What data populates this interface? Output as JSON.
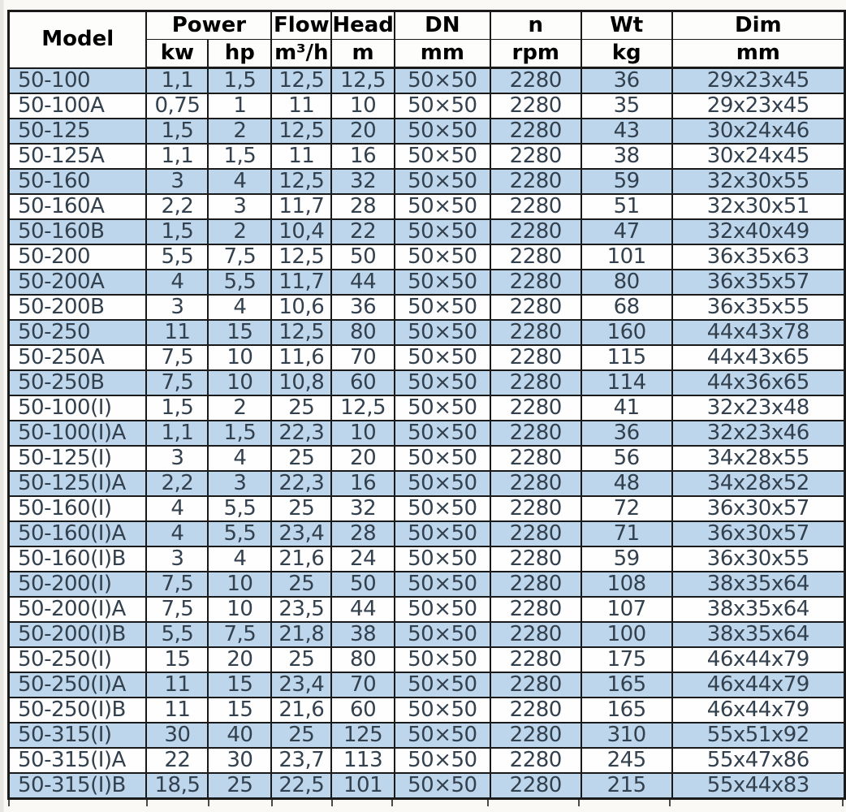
{
  "table": {
    "header": {
      "model_label": "Model",
      "power_label": "Power",
      "flow_label": "Flow",
      "head_label": "Head",
      "dn_label": "DN",
      "n_label": "n",
      "wt_label": "Wt",
      "dim_label": "Dim",
      "units": {
        "kw": "kw",
        "hp": "hp",
        "flow": "m³/h",
        "head": "m",
        "dn": "mm",
        "n": "rpm",
        "wt": "kg",
        "dim": "mm"
      }
    },
    "columns_order": [
      "model",
      "kw",
      "hp",
      "flow",
      "head",
      "dn",
      "n",
      "wt",
      "dim"
    ],
    "rows": [
      [
        "50-100",
        "1,1",
        "1,5",
        "12,5",
        "12,5",
        "50×50",
        "2280",
        "36",
        "29x23x45"
      ],
      [
        "50-100A",
        "0,75",
        "1",
        "11",
        "10",
        "50×50",
        "2280",
        "35",
        "29x23x45"
      ],
      [
        "50-125",
        "1,5",
        "2",
        "12,5",
        "20",
        "50×50",
        "2280",
        "43",
        "30x24x46"
      ],
      [
        "50-125A",
        "1,1",
        "1,5",
        "11",
        "16",
        "50×50",
        "2280",
        "38",
        "30x24x45"
      ],
      [
        "50-160",
        "3",
        "4",
        "12,5",
        "32",
        "50×50",
        "2280",
        "59",
        "32x30x55"
      ],
      [
        "50-160A",
        "2,2",
        "3",
        "11,7",
        "28",
        "50×50",
        "2280",
        "51",
        "32x30x51"
      ],
      [
        "50-160B",
        "1,5",
        "2",
        "10,4",
        "22",
        "50×50",
        "2280",
        "47",
        "32x40x49"
      ],
      [
        "50-200",
        "5,5",
        "7,5",
        "12,5",
        "50",
        "50×50",
        "2280",
        "101",
        "36x35x63"
      ],
      [
        "50-200A",
        "4",
        "5,5",
        "11,7",
        "44",
        "50×50",
        "2280",
        "80",
        "36x35x57"
      ],
      [
        "50-200B",
        "3",
        "4",
        "10,6",
        "36",
        "50×50",
        "2280",
        "68",
        "36x35x55"
      ],
      [
        "50-250",
        "11",
        "15",
        "12,5",
        "80",
        "50×50",
        "2280",
        "160",
        "44x43x78"
      ],
      [
        "50-250A",
        "7,5",
        "10",
        "11,6",
        "70",
        "50×50",
        "2280",
        "115",
        "44x43x65"
      ],
      [
        "50-250B",
        "7,5",
        "10",
        "10,8",
        "60",
        "50×50",
        "2280",
        "114",
        "44x36x65"
      ],
      [
        "50-100(I)",
        "1,5",
        "2",
        "25",
        "12,5",
        "50×50",
        "2280",
        "41",
        "32x23x48"
      ],
      [
        "50-100(I)A",
        "1,1",
        "1,5",
        "22,3",
        "10",
        "50×50",
        "2280",
        "36",
        "32x23x46"
      ],
      [
        "50-125(I)",
        "3",
        "4",
        "25",
        "20",
        "50×50",
        "2280",
        "56",
        "34x28x55"
      ],
      [
        "50-125(I)A",
        "2,2",
        "3",
        "22,3",
        "16",
        "50×50",
        "2280",
        "48",
        "34x28x52"
      ],
      [
        "50-160(I)",
        "4",
        "5,5",
        "25",
        "32",
        "50×50",
        "2280",
        "72",
        "36x30x57"
      ],
      [
        "50-160(I)A",
        "4",
        "5,5",
        "23,4",
        "28",
        "50×50",
        "2280",
        "71",
        "36x30x57"
      ],
      [
        "50-160(I)B",
        "3",
        "4",
        "21,6",
        "24",
        "50×50",
        "2280",
        "59",
        "36x30x55"
      ],
      [
        "50-200(I)",
        "7,5",
        "10",
        "25",
        "50",
        "50×50",
        "2280",
        "108",
        "38x35x64"
      ],
      [
        "50-200(I)A",
        "7,5",
        "10",
        "23,5",
        "44",
        "50×50",
        "2280",
        "107",
        "38x35x64"
      ],
      [
        "50-200(I)B",
        "5,5",
        "7,5",
        "21,8",
        "38",
        "50×50",
        "2280",
        "100",
        "38x35x64"
      ],
      [
        "50-250(I)",
        "15",
        "20",
        "25",
        "80",
        "50×50",
        "2280",
        "175",
        "46x44x79"
      ],
      [
        "50-250(I)A",
        "11",
        "15",
        "23,4",
        "70",
        "50×50",
        "2280",
        "165",
        "46x44x79"
      ],
      [
        "50-250(I)B",
        "11",
        "15",
        "21,6",
        "60",
        "50×50",
        "2280",
        "165",
        "46x44x79"
      ],
      [
        "50-315(I)",
        "30",
        "40",
        "25",
        "125",
        "50×50",
        "2280",
        "310",
        "55x51x92"
      ],
      [
        "50-315(I)A",
        "22",
        "30",
        "23,7",
        "113",
        "50×50",
        "2280",
        "245",
        "55x47x86"
      ],
      [
        "50-315(I)B",
        "18,5",
        "25",
        "22,5",
        "101",
        "50×50",
        "2280",
        "215",
        "55x44x83"
      ]
    ]
  },
  "style": {
    "row_alt_color": "#bdd6ec",
    "row_color": "#fefefe",
    "border_color": "#1a1a1a",
    "text_color": "#33404e",
    "header_text_color": "#000000",
    "header_bg_color": "#fdfdfb",
    "page_bg_color": "#faf9f6"
  }
}
